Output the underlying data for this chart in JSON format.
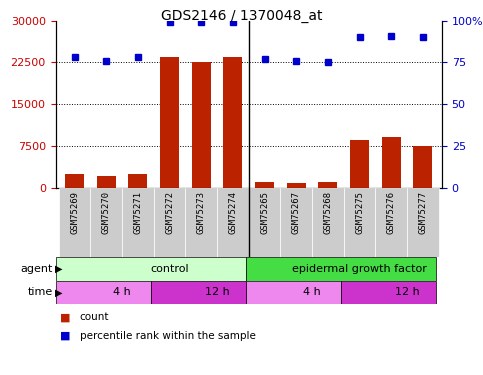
{
  "title": "GDS2146 / 1370048_at",
  "samples": [
    "GSM75269",
    "GSM75270",
    "GSM75271",
    "GSM75272",
    "GSM75273",
    "GSM75274",
    "GSM75265",
    "GSM75267",
    "GSM75268",
    "GSM75275",
    "GSM75276",
    "GSM75277"
  ],
  "counts": [
    2500,
    2000,
    2500,
    23500,
    22500,
    23500,
    900,
    800,
    900,
    8500,
    9000,
    7500
  ],
  "percentile_ranks": [
    78,
    76,
    78,
    99,
    99,
    99,
    77,
    76,
    75,
    90,
    91,
    90
  ],
  "ylim_left": [
    0,
    30000
  ],
  "ylim_right": [
    0,
    100
  ],
  "yticks_left": [
    0,
    7500,
    15000,
    22500,
    30000
  ],
  "yticks_right": [
    0,
    25,
    50,
    75,
    100
  ],
  "bar_color": "#bb2200",
  "dot_color": "#0000cc",
  "agent_groups": [
    {
      "label": "control",
      "start": 0,
      "end": 6,
      "color": "#ccffcc"
    },
    {
      "label": "epidermal growth factor",
      "start": 6,
      "end": 12,
      "color": "#44dd44"
    }
  ],
  "time_groups": [
    {
      "label": "4 h",
      "start": 0,
      "end": 3,
      "color": "#ee88ee"
    },
    {
      "label": "12 h",
      "start": 3,
      "end": 6,
      "color": "#cc33cc"
    },
    {
      "label": "4 h",
      "start": 6,
      "end": 9,
      "color": "#ee88ee"
    },
    {
      "label": "12 h",
      "start": 9,
      "end": 12,
      "color": "#cc33cc"
    }
  ],
  "legend_count_color": "#bb2200",
  "legend_dot_color": "#0000cc",
  "bg_color": "#ffffff",
  "plot_bg_color": "#ffffff",
  "grid_color": "#000000",
  "tick_label_color_left": "#cc0000",
  "tick_label_color_right": "#0000cc",
  "separator_positions": [
    5.5
  ],
  "cell_bg_color": "#cccccc",
  "n_samples": 12,
  "n_control": 6,
  "n_egf": 6
}
